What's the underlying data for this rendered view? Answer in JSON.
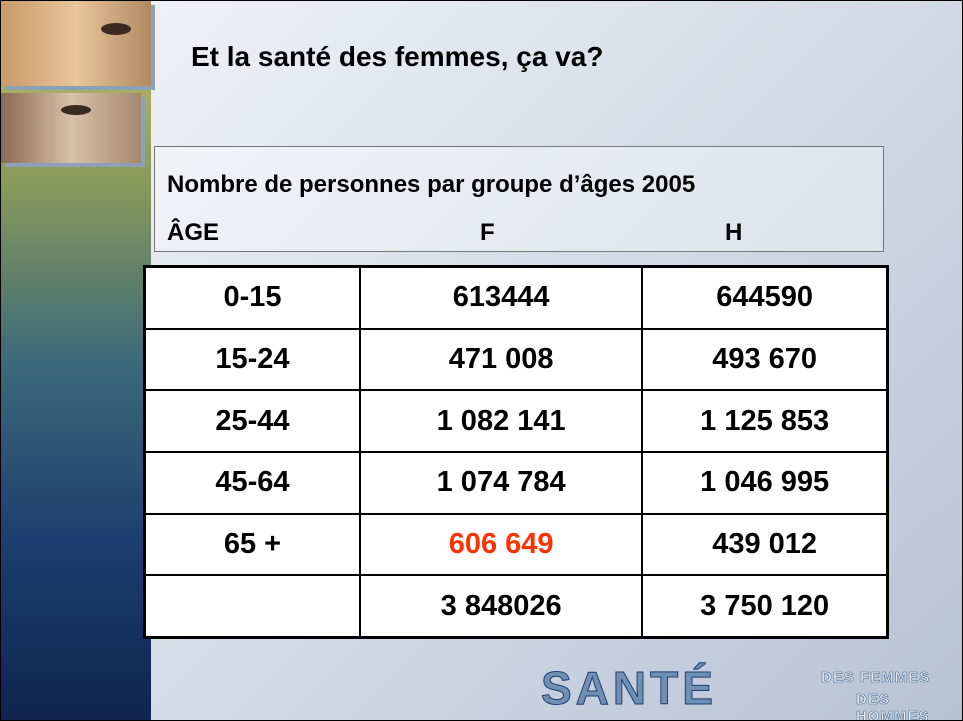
{
  "header": {
    "title": "Et la santé des femmes, ça va?"
  },
  "table": {
    "caption": "Nombre de personnes par groupe d’âges 2005",
    "columns": [
      "ÂGE",
      "F",
      "H"
    ],
    "rows": [
      [
        "0-15",
        "613444",
        "644590"
      ],
      [
        "15-24",
        "471 008",
        "493 670"
      ],
      [
        "25-44",
        "1 082 141",
        "1 125 853"
      ],
      [
        "45-64",
        "1 074 784",
        "1 046 995"
      ],
      [
        "65 +",
        "606 649",
        "439 012"
      ],
      [
        null,
        "3 848026",
        "3 750 120"
      ]
    ]
  },
  "logo": {
    "name": "SANTÉ",
    "line1": "DES FEMMES",
    "line2": "DES HOMMES"
  }
}
